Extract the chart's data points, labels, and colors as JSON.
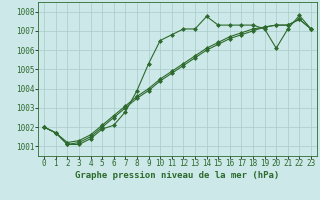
{
  "title": "Graphe pression niveau de la mer (hPa)",
  "background_color": "#cce8e8",
  "line_color": "#2d6a2d",
  "grid_color": "#aacccc",
  "xlim": [
    -0.5,
    23.5
  ],
  "ylim": [
    1000.5,
    1008.5
  ],
  "yticks": [
    1001,
    1002,
    1003,
    1004,
    1005,
    1006,
    1007,
    1008
  ],
  "xticks": [
    0,
    1,
    2,
    3,
    4,
    5,
    6,
    7,
    8,
    9,
    10,
    11,
    12,
    13,
    14,
    15,
    16,
    17,
    18,
    19,
    20,
    21,
    22,
    23
  ],
  "series": [
    [
      1002.0,
      1001.7,
      1001.1,
      1001.1,
      1001.4,
      1001.9,
      1002.1,
      1002.8,
      1003.9,
      1005.3,
      1006.5,
      1006.8,
      1007.1,
      1007.1,
      1007.75,
      1007.3,
      1007.3,
      1007.3,
      1007.3,
      1007.1,
      1006.1,
      1007.1,
      1007.8,
      1007.1
    ],
    [
      1002.0,
      1001.7,
      1001.1,
      1001.2,
      1001.5,
      1002.0,
      1002.5,
      1003.0,
      1003.5,
      1003.9,
      1004.4,
      1004.8,
      1005.2,
      1005.6,
      1006.0,
      1006.3,
      1006.6,
      1006.8,
      1007.0,
      1007.2,
      1007.3,
      1007.3,
      1007.6,
      1007.1
    ],
    [
      1002.0,
      1001.7,
      1001.2,
      1001.3,
      1001.6,
      1002.1,
      1002.6,
      1003.1,
      1003.6,
      1004.0,
      1004.5,
      1004.9,
      1005.3,
      1005.7,
      1006.1,
      1006.4,
      1006.7,
      1006.9,
      1007.1,
      1007.2,
      1007.3,
      1007.3,
      1007.6,
      1007.1
    ]
  ],
  "marker": "D",
  "marker_size": 2.0,
  "line_width": 0.8,
  "title_fontsize": 6.5,
  "tick_fontsize": 5.5
}
